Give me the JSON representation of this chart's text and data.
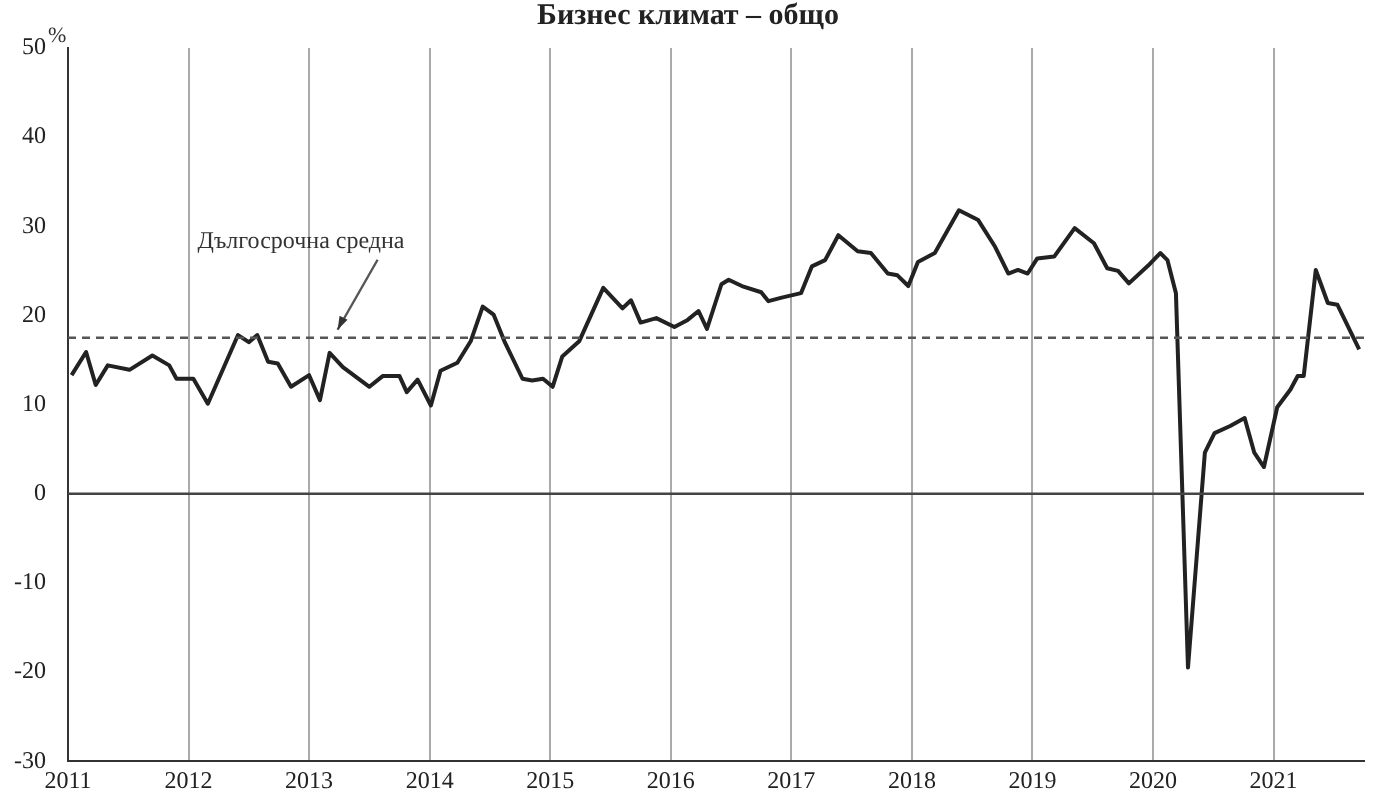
{
  "chart_data": {
    "type": "line",
    "title": "Бизнес климат – общо",
    "ylabel": "%",
    "x": [
      2011.03,
      2011.15,
      2011.23,
      2011.33,
      2011.51,
      2011.7,
      2011.84,
      2011.9,
      2012.04,
      2012.16,
      2012.41,
      2012.5,
      2012.57,
      2012.66,
      2012.74,
      2012.85,
      2013.0,
      2013.09,
      2013.17,
      2013.28,
      2013.5,
      2013.61,
      2013.75,
      2013.81,
      2013.9,
      2014.01,
      2014.09,
      2014.23,
      2014.34,
      2014.44,
      2014.53,
      2014.62,
      2014.77,
      2014.85,
      2014.94,
      2015.02,
      2015.1,
      2015.24,
      2015.44,
      2015.6,
      2015.67,
      2015.75,
      2015.88,
      2016.03,
      2016.14,
      2016.23,
      2016.3,
      2016.42,
      2016.48,
      2016.59,
      2016.75,
      2016.81,
      2016.92,
      2017.08,
      2017.17,
      2017.28,
      2017.39,
      2017.55,
      2017.66,
      2017.8,
      2017.88,
      2017.97,
      2018.05,
      2018.19,
      2018.39,
      2018.55,
      2018.69,
      2018.8,
      2018.88,
      2018.96,
      2019.04,
      2019.18,
      2019.35,
      2019.51,
      2019.62,
      2019.71,
      2019.8,
      2019.96,
      2020.06,
      2020.12,
      2020.19,
      2020.29,
      2020.43,
      2020.51,
      2020.64,
      2020.76,
      2020.84,
      2020.92,
      2021.03,
      2021.14,
      2021.2,
      2021.25,
      2021.35,
      2021.45,
      2021.53,
      2021.71
    ],
    "series": [
      {
        "color": "#222222",
        "values": [
          13.3,
          15.9,
          12.2,
          14.4,
          13.9,
          15.5,
          14.4,
          12.9,
          12.9,
          10.1,
          17.8,
          17,
          17.8,
          14.8,
          14.6,
          12,
          13.3,
          10.5,
          15.8,
          14.2,
          12,
          13.2,
          13.2,
          11.4,
          12.8,
          9.9,
          13.8,
          14.7,
          17.1,
          21,
          20.1,
          17.1,
          12.9,
          12.7,
          12.9,
          12,
          15.4,
          17.1,
          23.1,
          20.8,
          21.7,
          19.2,
          19.7,
          18.7,
          19.5,
          20.5,
          18.5,
          23.5,
          24,
          23.3,
          22.6,
          21.6,
          22,
          22.5,
          25.5,
          26.2,
          29,
          27.2,
          27,
          24.7,
          24.5,
          23.3,
          26,
          27,
          31.8,
          30.7,
          27.7,
          24.7,
          25.1,
          24.7,
          26.4,
          26.6,
          29.8,
          28.1,
          25.3,
          25,
          23.6,
          25.6,
          27,
          26.2,
          22.5,
          -19.5,
          4.6,
          6.8,
          7.6,
          8.5,
          4.6,
          3,
          9.7,
          11.7,
          13.2,
          13.2,
          25.1,
          21.4,
          21.2,
          16.2
        ]
      }
    ],
    "xlim": [
      2011,
      2021.75
    ],
    "xticks": [
      2011,
      2012,
      2013,
      2014,
      2015,
      2016,
      2017,
      2018,
      2019,
      2020,
      2021
    ],
    "ylim": [
      -30,
      50
    ],
    "yticks": [
      -30,
      -20,
      -10,
      0,
      10,
      20,
      30,
      40,
      50
    ],
    "grid": "x",
    "legend": false,
    "marker": "none",
    "line_style": "solid",
    "ref_lines": [
      {
        "axis": "y",
        "value": 0,
        "color": "#444444",
        "line_style": "solid"
      },
      {
        "axis": "y",
        "value": 17.5,
        "label": "Дългосрочна средна",
        "color": "#555555",
        "line_style": "dashed"
      }
    ]
  }
}
